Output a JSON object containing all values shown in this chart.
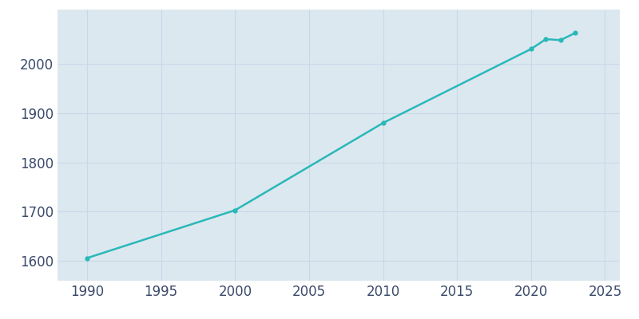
{
  "years": [
    1990,
    2000,
    2010,
    2020,
    2021,
    2022,
    2023
  ],
  "population": [
    1606,
    1703,
    1880,
    2030,
    2050,
    2048,
    2063
  ],
  "line_color": "#2ab8b8",
  "marker": "o",
  "marker_size": 3.5,
  "line_width": 1.8,
  "background_color": "#dce8f0",
  "plot_bg_color": "#dce8f0",
  "fig_bg_color": "#ffffff",
  "grid_color": "#c8d8e8",
  "xlim": [
    1988,
    2026
  ],
  "ylim": [
    1560,
    2110
  ],
  "xticks": [
    1990,
    1995,
    2000,
    2005,
    2010,
    2015,
    2020,
    2025
  ],
  "yticks": [
    1600,
    1700,
    1800,
    1900,
    2000
  ],
  "tick_color": "#3a4a6a",
  "tick_fontsize": 12
}
